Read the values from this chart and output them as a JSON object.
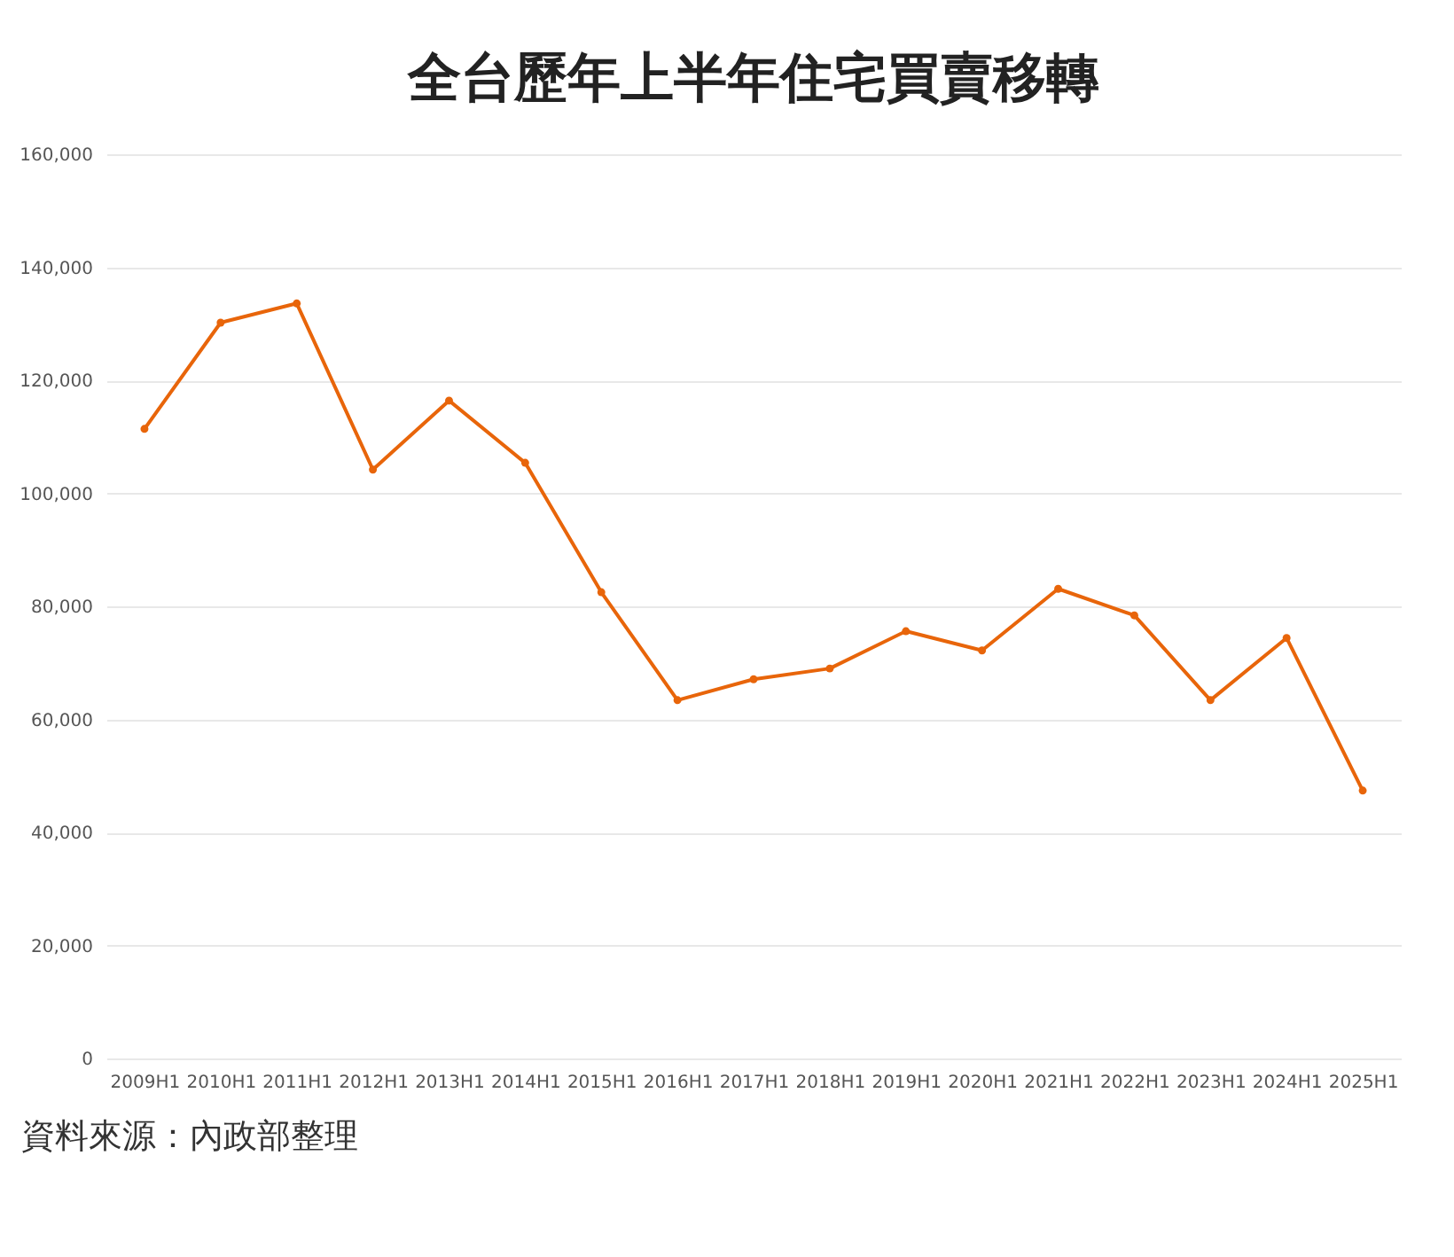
{
  "chart_data": {
    "type": "line",
    "title": "全台歷年上半年住宅買賣移轉",
    "categories": [
      "2009H1",
      "2010H1",
      "2011H1",
      "2012H1",
      "2013H1",
      "2014H1",
      "2015H1",
      "2016H1",
      "2017H1",
      "2018H1",
      "2019H1",
      "2020H1",
      "2021H1",
      "2022H1",
      "2023H1",
      "2024H1",
      "2025H1"
    ],
    "series": [
      {
        "color": "#e8650a",
        "values": [
          111400,
          130200,
          133600,
          104200,
          116400,
          105400,
          82500,
          63400,
          67100,
          69000,
          75600,
          72200,
          83100,
          78400,
          63400,
          74400,
          47400
        ]
      }
    ],
    "ylim": [
      0,
      160000
    ],
    "yticks": [
      0,
      {
        "value": 20000,
        "label": "20,000"
      },
      {
        "value": 40000,
        "label": "40,000"
      },
      {
        "value": 60000,
        "label": "60,000"
      },
      {
        "value": 80000,
        "label": "80,000"
      },
      {
        "value": 100000,
        "label": "100,000"
      },
      {
        "value": 120000,
        "label": "120,000"
      },
      {
        "value": 140000,
        "label": "140,000"
      },
      {
        "value": 160000,
        "label": "160,000"
      }
    ],
    "grid": "y",
    "marker": "circle",
    "line_style": "solid",
    "annotations": [
      "資料來源：內政部整理"
    ]
  }
}
